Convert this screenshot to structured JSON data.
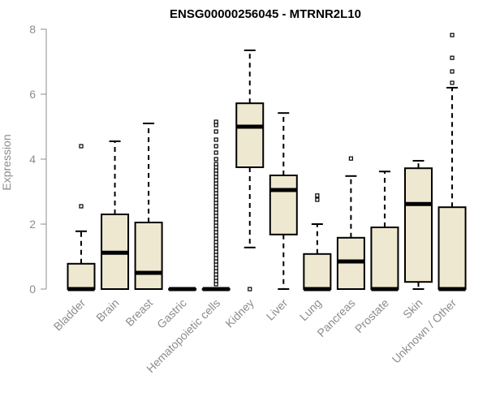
{
  "chart_data": {
    "type": "boxplot",
    "title": "ENSG00000256045 - MTRNR2L10",
    "xlabel": "",
    "ylabel": "Expression",
    "ylim": [
      0,
      8
    ],
    "yticks": [
      0,
      2,
      4,
      6,
      8
    ],
    "colors": {
      "box_fill": "#efe8d0",
      "stroke": "#000000",
      "axis": "#8c8c8c"
    },
    "categories": [
      "Bladder",
      "Brain",
      "Breast",
      "Gastric",
      "Hematopoietic cells",
      "Kidney",
      "Liver",
      "Lung",
      "Pancreas",
      "Prostate",
      "Skin",
      "Unknown / Other"
    ],
    "boxes": [
      {
        "name": "Bladder",
        "whisker_low": 0,
        "q1": 0,
        "median": 0,
        "q3": 0.78,
        "whisker_high": 1.78,
        "outliers": [
          2.55,
          4.4
        ]
      },
      {
        "name": "Brain",
        "whisker_low": 0,
        "q1": 0,
        "median": 1.12,
        "q3": 2.3,
        "whisker_high": 4.55,
        "outliers": []
      },
      {
        "name": "Breast",
        "whisker_low": 0,
        "q1": 0,
        "median": 0.5,
        "q3": 2.05,
        "whisker_high": 5.1,
        "outliers": []
      },
      {
        "name": "Gastric",
        "whisker_low": 0,
        "q1": 0,
        "median": 0,
        "q3": 0,
        "whisker_high": 0,
        "outliers": []
      },
      {
        "name": "Hematopoietic cells",
        "whisker_low": 0,
        "q1": 0,
        "median": 0,
        "q3": 0,
        "whisker_high": 0,
        "outliers": [
          0.15,
          0.25,
          0.35,
          0.45,
          0.55,
          0.65,
          0.75,
          0.85,
          0.95,
          1.05,
          1.15,
          1.25,
          1.35,
          1.45,
          1.55,
          1.65,
          1.75,
          1.85,
          1.95,
          2.05,
          2.15,
          2.25,
          2.35,
          2.45,
          2.55,
          2.65,
          2.75,
          2.85,
          2.95,
          3.05,
          3.15,
          3.25,
          3.35,
          3.45,
          3.55,
          3.65,
          3.75,
          3.85,
          4.0,
          4.2,
          4.4,
          4.6,
          4.85,
          5.05,
          5.15
        ]
      },
      {
        "name": "Kidney",
        "whisker_low": 1.28,
        "q1": 3.75,
        "median": 5.0,
        "q3": 5.72,
        "whisker_high": 7.35,
        "outliers": [
          0
        ]
      },
      {
        "name": "Liver",
        "whisker_low": 0,
        "q1": 1.68,
        "median": 3.05,
        "q3": 3.5,
        "whisker_high": 5.42,
        "outliers": []
      },
      {
        "name": "Lung",
        "whisker_low": 0,
        "q1": 0,
        "median": 0,
        "q3": 1.08,
        "whisker_high": 2.0,
        "outliers": [
          2.75,
          2.88
        ]
      },
      {
        "name": "Pancreas",
        "whisker_low": 0,
        "q1": 0,
        "median": 0.85,
        "q3": 1.58,
        "whisker_high": 3.48,
        "outliers": [
          4.02
        ]
      },
      {
        "name": "Prostate",
        "whisker_low": 0,
        "q1": 0,
        "median": 0,
        "q3": 1.9,
        "whisker_high": 3.62,
        "outliers": []
      },
      {
        "name": "Skin",
        "whisker_low": 0,
        "q1": 0.22,
        "median": 2.62,
        "q3": 3.72,
        "whisker_high": 3.95,
        "outliers": []
      },
      {
        "name": "Unknown / Other",
        "whisker_low": 0,
        "q1": 0,
        "median": 0,
        "q3": 2.52,
        "whisker_high": 6.2,
        "outliers": [
          6.35,
          6.7,
          7.12,
          7.82
        ]
      }
    ]
  }
}
